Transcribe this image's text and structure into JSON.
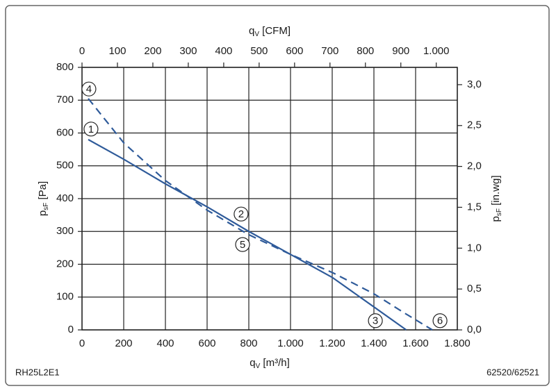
{
  "chart_data": {
    "type": "line",
    "xlabel": {
      "symbol": "q",
      "subscript": "V",
      "unit": "[m³/h]"
    },
    "x2label": {
      "symbol": "q",
      "subscript": "V",
      "unit": "[CFM]"
    },
    "ylabel": {
      "symbol": "p",
      "subscript": "sF",
      "unit": "[Pa]"
    },
    "y2label": {
      "symbol": "p",
      "subscript": "sF",
      "unit": "[in.wg]"
    },
    "xlim": [
      0,
      1800
    ],
    "xticks": [
      0,
      200,
      400,
      600,
      800,
      {
        "value": 1000,
        "label": "1.000"
      },
      {
        "value": 1200,
        "label": "1.200"
      },
      {
        "value": 1400,
        "label": "1.400"
      },
      {
        "value": 1600,
        "label": "1.600"
      },
      {
        "value": 1800,
        "label": "1.800"
      }
    ],
    "x2lim": [
      0,
      1059.4
    ],
    "x2ticks": [
      0,
      100,
      200,
      300,
      400,
      500,
      600,
      700,
      800,
      900,
      {
        "value": 1000,
        "label": "1.000"
      }
    ],
    "ylim": [
      0,
      800
    ],
    "yticks": [
      0,
      100,
      200,
      300,
      400,
      500,
      600,
      700,
      800
    ],
    "y2lim": [
      0,
      3.2117
    ],
    "y2ticks": [
      {
        "value": 0,
        "label": "0,0"
      },
      {
        "value": 0.5,
        "label": "0,5"
      },
      {
        "value": 1,
        "label": "1,0"
      },
      {
        "value": 1.5,
        "label": "1,5"
      },
      {
        "value": 2,
        "label": "2,0"
      },
      {
        "value": 2.5,
        "label": "2,5"
      },
      {
        "value": 3,
        "label": "3,0"
      }
    ],
    "grid": true,
    "series": [
      {
        "color": "#2f5b9a",
        "dashed": false,
        "x": [
          30,
          200,
          400,
          600,
          800,
          1000,
          1200,
          1400,
          1555
        ],
        "values": [
          580,
          520,
          445,
          375,
          300,
          230,
          160,
          70,
          0
        ]
      },
      {
        "color": "#2f5b9a",
        "dashed": true,
        "x": [
          30,
          200,
          400,
          600,
          800,
          1000,
          1200,
          1400,
          1550,
          1680
        ],
        "values": [
          705,
          570,
          455,
          365,
          290,
          230,
          175,
          110,
          50,
          0
        ]
      }
    ],
    "annotations": [
      {
        "text": "1",
        "x": 43,
        "y": 612
      },
      {
        "text": "2",
        "x": 763,
        "y": 353
      },
      {
        "text": "3",
        "x": 1407,
        "y": 28
      },
      {
        "text": "4",
        "x": 33,
        "y": 734
      },
      {
        "text": "5",
        "x": 770,
        "y": 260
      },
      {
        "text": "6",
        "x": 1717,
        "y": 28
      }
    ],
    "footer_left": "RH25L2E1",
    "footer_right": "62520/62521"
  }
}
